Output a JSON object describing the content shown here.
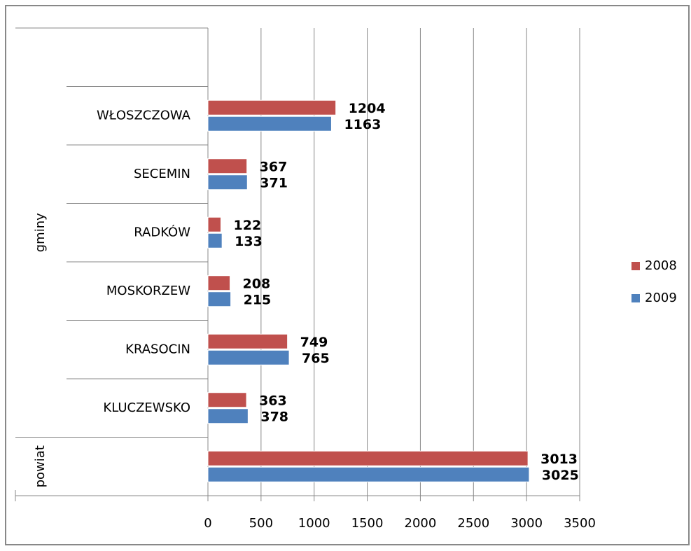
{
  "chart_data": {
    "type": "bar",
    "orientation": "horizontal",
    "categories": [
      null,
      "KLUCZEWSKO",
      "KRASOCIN",
      "MOSKORZEW",
      "RADKÓW",
      "SECEMIN",
      "WŁOSZCZOWA",
      null
    ],
    "groups": [
      {
        "label": "powiat",
        "count": 1
      },
      {
        "label": "gminy",
        "count": 7
      }
    ],
    "series": [
      {
        "name": "2008",
        "color": "#c0504d",
        "values": [
          3013,
          363,
          749,
          208,
          122,
          367,
          1204,
          null
        ]
      },
      {
        "name": "2009",
        "color": "#4f81bd",
        "values": [
          3025,
          378,
          765,
          215,
          133,
          371,
          1163,
          null
        ]
      }
    ],
    "xlim": [
      0,
      3500
    ],
    "xticks": [
      0,
      500,
      1000,
      1500,
      2000,
      2500,
      3000,
      3500
    ],
    "grid": true,
    "legend": "right"
  }
}
